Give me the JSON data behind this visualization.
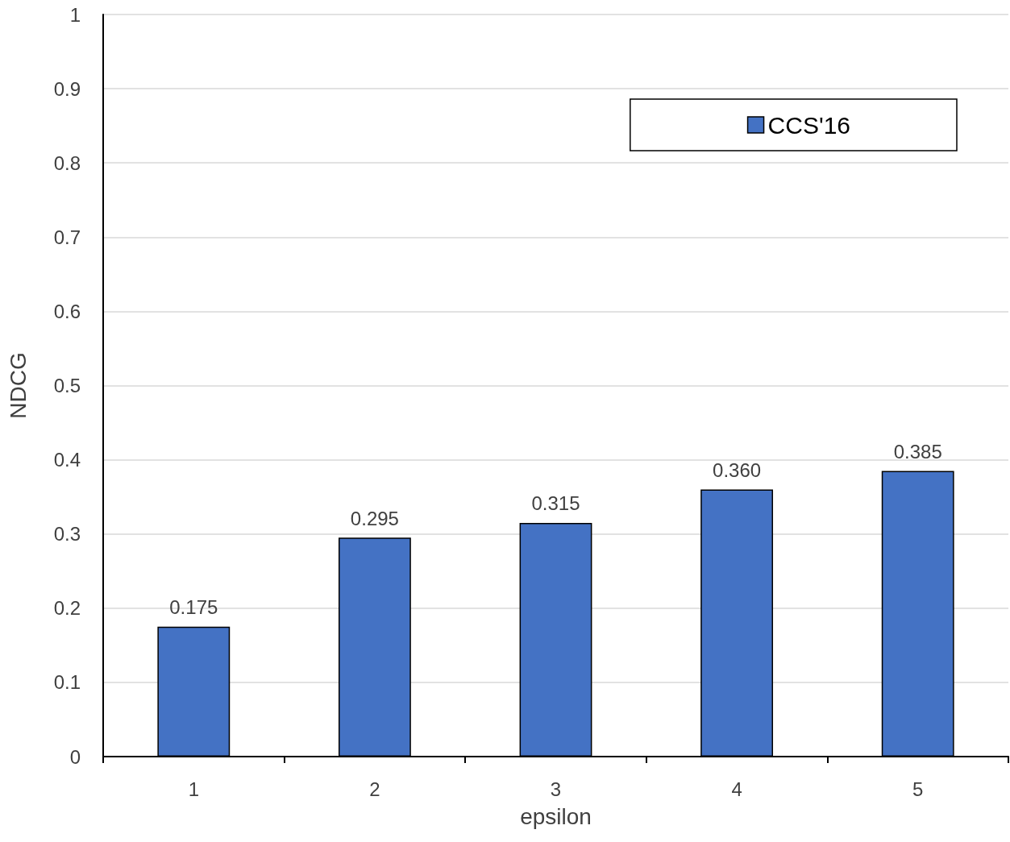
{
  "chart_data": {
    "type": "bar",
    "xlabel": "epsilon",
    "ylabel": "NDCG",
    "categories": [
      "1",
      "2",
      "3",
      "4",
      "5"
    ],
    "series": [
      {
        "name": "CCS'16",
        "color": "#4472c4",
        "values": [
          0.175,
          0.295,
          0.315,
          0.36,
          0.385
        ],
        "value_labels": [
          "0.175",
          "0.295",
          "0.315",
          "0.360",
          "0.385"
        ]
      }
    ],
    "ylim": [
      0,
      1
    ],
    "yticks": [
      0,
      0.1,
      0.2,
      0.3,
      0.4,
      0.5,
      0.6,
      0.7,
      0.8,
      0.9,
      1
    ],
    "grid": "y",
    "legend": "top right"
  }
}
